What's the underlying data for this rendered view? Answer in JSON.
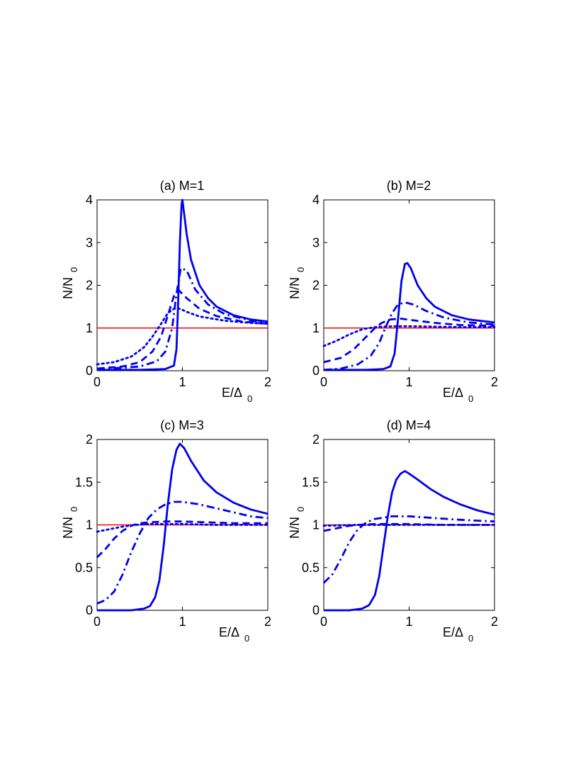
{
  "figure": {
    "colors": {
      "curves": "#0000ee",
      "reference": "#ff0000",
      "axes": "#000000"
    }
  },
  "chart_data": [
    {
      "type": "line",
      "title": "(a) M=1",
      "xlabel_main": "E/Δ",
      "xlabel_sub": "0",
      "ylabel_main": "N/N",
      "ylabel_sub": "0",
      "xlim": [
        0,
        2
      ],
      "ylim": [
        0,
        4
      ],
      "xticks": [
        0,
        1,
        2
      ],
      "yticks": [
        0,
        1,
        2,
        3,
        4
      ],
      "reference_line": 1,
      "series": [
        {
          "name": "solid",
          "style": "solid",
          "x": [
            0,
            0.5,
            0.8,
            0.9,
            0.93,
            0.95,
            0.97,
            0.99,
            1.0,
            1.05,
            1.1,
            1.2,
            1.3,
            1.4,
            1.6,
            1.8,
            2.0
          ],
          "y": [
            0.02,
            0.02,
            0.04,
            0.12,
            0.5,
            1.6,
            3.0,
            3.9,
            4.0,
            3.2,
            2.6,
            2.0,
            1.7,
            1.5,
            1.3,
            1.2,
            1.15
          ]
        },
        {
          "name": "dash-dot",
          "style": "dashdot",
          "x": [
            0,
            0.3,
            0.5,
            0.7,
            0.8,
            0.88,
            0.93,
            0.98,
            1.05,
            1.15,
            1.3,
            1.5,
            1.8,
            2.0
          ],
          "y": [
            0.05,
            0.07,
            0.1,
            0.22,
            0.45,
            1.0,
            1.8,
            2.4,
            2.35,
            1.9,
            1.55,
            1.32,
            1.18,
            1.12
          ]
        },
        {
          "name": "dashed",
          "style": "dashed",
          "x": [
            0,
            0.3,
            0.5,
            0.65,
            0.75,
            0.83,
            0.9,
            0.96,
            1.05,
            1.2,
            1.4,
            1.7,
            2.0
          ],
          "y": [
            0.05,
            0.1,
            0.2,
            0.45,
            0.8,
            1.3,
            1.75,
            1.88,
            1.7,
            1.45,
            1.28,
            1.15,
            1.1
          ]
        },
        {
          "name": "dotted",
          "style": "dotted",
          "x": [
            0,
            0.2,
            0.4,
            0.55,
            0.65,
            0.75,
            0.83,
            0.9,
            0.97,
            1.05,
            1.2,
            1.5,
            1.8,
            2.0
          ],
          "y": [
            0.15,
            0.2,
            0.33,
            0.55,
            0.8,
            1.1,
            1.35,
            1.45,
            1.45,
            1.38,
            1.27,
            1.17,
            1.12,
            1.1
          ]
        }
      ]
    },
    {
      "type": "line",
      "title": "(b) M=2",
      "xlabel_main": "E/Δ",
      "xlabel_sub": "0",
      "ylabel_main": "N/N",
      "ylabel_sub": "0",
      "xlim": [
        0,
        2
      ],
      "ylim": [
        0,
        4
      ],
      "xticks": [
        0,
        1,
        2
      ],
      "yticks": [
        0,
        1,
        2,
        3,
        4
      ],
      "reference_line": 1,
      "series": [
        {
          "name": "solid",
          "style": "solid",
          "x": [
            0,
            0.5,
            0.7,
            0.78,
            0.83,
            0.87,
            0.91,
            0.95,
            0.98,
            1.02,
            1.1,
            1.2,
            1.3,
            1.5,
            1.7,
            2.0
          ],
          "y": [
            0.02,
            0.02,
            0.04,
            0.1,
            0.4,
            1.2,
            2.1,
            2.5,
            2.52,
            2.4,
            2.0,
            1.7,
            1.5,
            1.3,
            1.2,
            1.13
          ]
        },
        {
          "name": "dash-dot",
          "style": "dashdot",
          "x": [
            0,
            0.2,
            0.4,
            0.55,
            0.65,
            0.72,
            0.8,
            0.87,
            0.95,
            1.05,
            1.2,
            1.4,
            1.7,
            2.0
          ],
          "y": [
            0.02,
            0.05,
            0.15,
            0.35,
            0.65,
            1.0,
            1.35,
            1.55,
            1.6,
            1.55,
            1.4,
            1.25,
            1.13,
            1.08
          ]
        },
        {
          "name": "dashed",
          "style": "dashed",
          "x": [
            0,
            0.2,
            0.35,
            0.5,
            0.6,
            0.68,
            0.78,
            0.9,
            1.05,
            1.3,
            1.6,
            2.0
          ],
          "y": [
            0.2,
            0.3,
            0.5,
            0.8,
            1.0,
            1.12,
            1.2,
            1.22,
            1.18,
            1.12,
            1.07,
            1.05
          ]
        },
        {
          "name": "dotted",
          "style": "dotted",
          "x": [
            0,
            0.15,
            0.3,
            0.45,
            0.6,
            0.8,
            1.0,
            1.3,
            1.6,
            2.0
          ],
          "y": [
            0.58,
            0.7,
            0.85,
            0.97,
            1.02,
            1.04,
            1.04,
            1.03,
            1.02,
            1.02
          ]
        }
      ]
    },
    {
      "type": "line",
      "title": "(c) M=3",
      "xlabel_main": "E/Δ",
      "xlabel_sub": "0",
      "ylabel_main": "N/N",
      "ylabel_sub": "0",
      "xlim": [
        0,
        2
      ],
      "ylim": [
        0,
        2
      ],
      "xticks": [
        0,
        1,
        2
      ],
      "yticks": [
        0,
        0.5,
        1,
        1.5,
        2
      ],
      "reference_line": 1,
      "series": [
        {
          "name": "solid",
          "style": "solid",
          "x": [
            0,
            0.4,
            0.55,
            0.62,
            0.68,
            0.73,
            0.78,
            0.83,
            0.88,
            0.93,
            0.97,
            1.02,
            1.1,
            1.25,
            1.4,
            1.6,
            1.8,
            2.0
          ],
          "y": [
            0.0,
            0.0,
            0.02,
            0.05,
            0.15,
            0.35,
            0.75,
            1.25,
            1.65,
            1.88,
            1.95,
            1.9,
            1.75,
            1.52,
            1.38,
            1.26,
            1.18,
            1.13
          ]
        },
        {
          "name": "dash-dot",
          "style": "dashdot",
          "x": [
            0,
            0.1,
            0.2,
            0.3,
            0.4,
            0.5,
            0.6,
            0.7,
            0.8,
            0.9,
            1.0,
            1.2,
            1.5,
            1.8,
            2.0
          ],
          "y": [
            0.08,
            0.12,
            0.22,
            0.42,
            0.68,
            0.9,
            1.08,
            1.18,
            1.24,
            1.27,
            1.27,
            1.24,
            1.17,
            1.1,
            1.08
          ]
        },
        {
          "name": "dashed",
          "style": "dashed",
          "x": [
            0,
            0.1,
            0.2,
            0.3,
            0.4,
            0.5,
            0.6,
            0.8,
            1.0,
            1.3,
            1.6,
            2.0
          ],
          "y": [
            0.62,
            0.72,
            0.84,
            0.93,
            0.99,
            1.02,
            1.03,
            1.04,
            1.04,
            1.03,
            1.02,
            1.02
          ]
        },
        {
          "name": "dotted",
          "style": "dotted",
          "x": [
            0,
            0.1,
            0.2,
            0.3,
            0.45,
            0.6,
            0.8,
            1.0,
            1.4,
            2.0
          ],
          "y": [
            0.92,
            0.94,
            0.96,
            0.98,
            1.0,
            1.01,
            1.01,
            1.01,
            1.0,
            1.0
          ]
        }
      ]
    },
    {
      "type": "line",
      "title": "(d) M=4",
      "xlabel_main": "E/Δ",
      "xlabel_sub": "0",
      "ylabel_main": "N/N",
      "ylabel_sub": "0",
      "xlim": [
        0,
        2
      ],
      "ylim": [
        0,
        2
      ],
      "xticks": [
        0,
        1,
        2
      ],
      "yticks": [
        0,
        0.5,
        1,
        1.5,
        2
      ],
      "reference_line": 1,
      "series": [
        {
          "name": "solid",
          "style": "solid",
          "x": [
            0,
            0.3,
            0.45,
            0.53,
            0.6,
            0.65,
            0.7,
            0.75,
            0.8,
            0.85,
            0.9,
            0.95,
            1.0,
            1.1,
            1.25,
            1.4,
            1.6,
            1.8,
            2.0
          ],
          "y": [
            0.0,
            0.0,
            0.02,
            0.06,
            0.18,
            0.4,
            0.75,
            1.1,
            1.38,
            1.53,
            1.6,
            1.63,
            1.6,
            1.53,
            1.42,
            1.33,
            1.24,
            1.17,
            1.12
          ]
        },
        {
          "name": "dash-dot",
          "style": "dashdot",
          "x": [
            0,
            0.1,
            0.2,
            0.3,
            0.4,
            0.5,
            0.6,
            0.8,
            1.0,
            1.3,
            1.6,
            2.0
          ],
          "y": [
            0.32,
            0.42,
            0.6,
            0.8,
            0.95,
            1.03,
            1.07,
            1.1,
            1.1,
            1.08,
            1.06,
            1.04
          ]
        },
        {
          "name": "dashed",
          "style": "dashed",
          "x": [
            0,
            0.1,
            0.2,
            0.3,
            0.4,
            0.6,
            0.8,
            1.0,
            1.4,
            2.0
          ],
          "y": [
            0.93,
            0.95,
            0.97,
            0.99,
            1.0,
            1.01,
            1.01,
            1.01,
            1.0,
            1.0
          ]
        },
        {
          "name": "dotted",
          "style": "dotted",
          "x": [
            0,
            0.2,
            0.4,
            0.8,
            1.2,
            2.0
          ],
          "y": [
            0.99,
            0.995,
            1.0,
            1.0,
            1.0,
            1.0
          ]
        }
      ]
    }
  ]
}
